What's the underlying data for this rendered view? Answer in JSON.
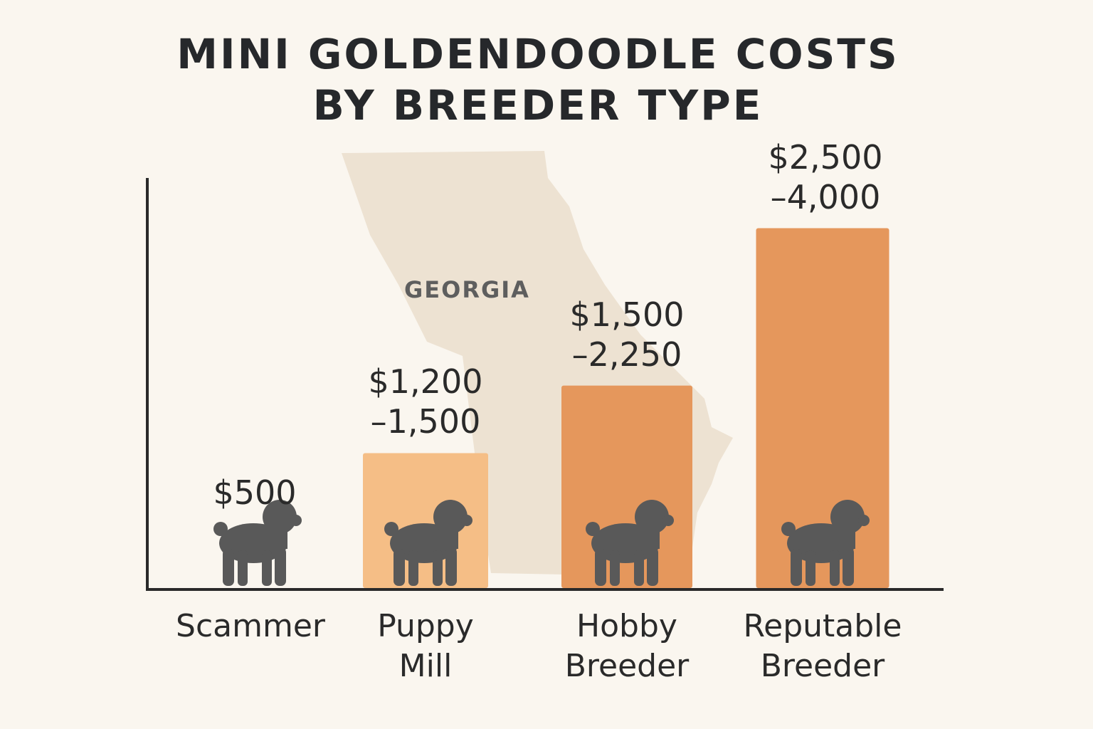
{
  "chart_data": {
    "type": "bar",
    "title_lines": [
      "MINI GOLDENDOODLE COSTS",
      "BY BREEDER TYPE"
    ],
    "background_label": "GEORGIA",
    "categories": [
      "Scammer",
      "Puppy Mill",
      "Hobby Breeder",
      "Reputable Breeder"
    ],
    "category_lines": [
      [
        "Scammer"
      ],
      [
        "Puppy",
        "Mill"
      ],
      [
        "Hobby",
        "Breeder"
      ],
      [
        "Reputable",
        "Breeder"
      ]
    ],
    "values_low": [
      500,
      1200,
      1500,
      2500
    ],
    "values_high": [
      500,
      1500,
      2250,
      4000
    ],
    "data_labels": [
      [
        "$500"
      ],
      [
        "$1,200",
        "–1,500"
      ],
      [
        "$1,500",
        "–2,250"
      ],
      [
        "$2,500",
        "–4,000"
      ]
    ],
    "bar_colors": [
      "none",
      "#F5BE86",
      "#E5975C",
      "#E5975C"
    ],
    "ylim": [
      0,
      4400
    ],
    "grid": false,
    "y_ticks": "none",
    "colors": {
      "background": "#FAF6EF",
      "map": "#EDE2D2",
      "dog": "#595959",
      "axis": "#2a2a2a"
    }
  }
}
